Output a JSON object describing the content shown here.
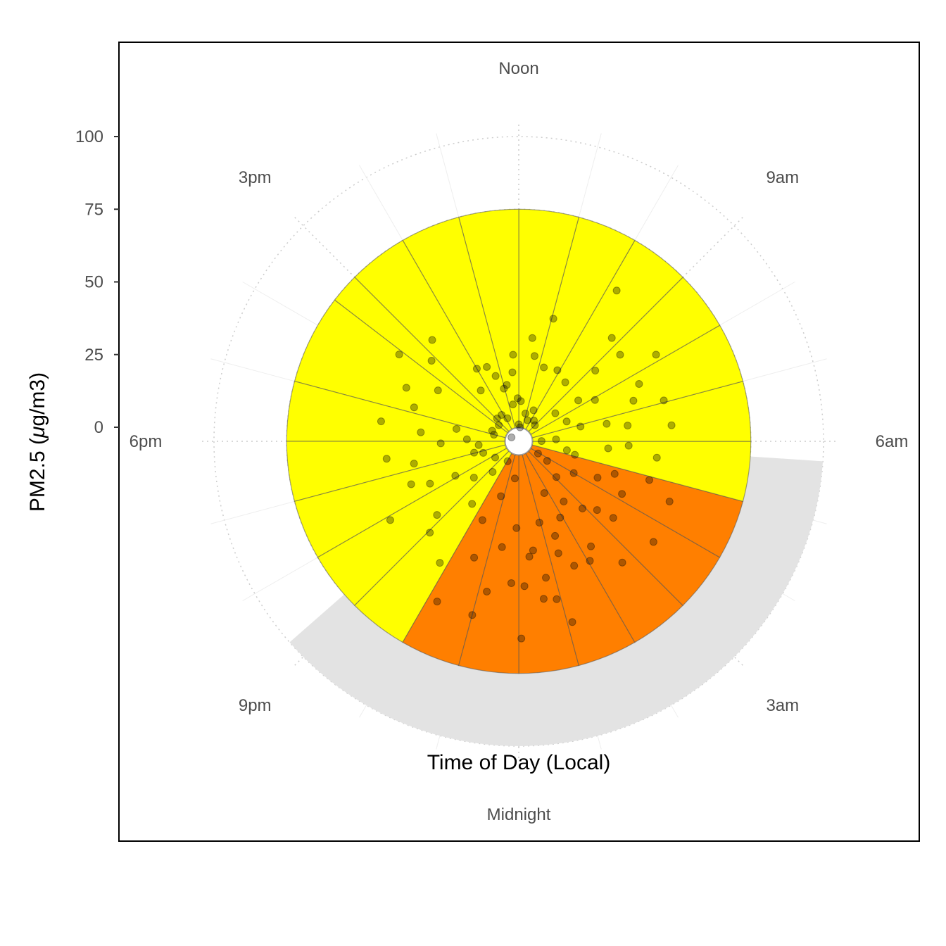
{
  "chart_data": {
    "type": "polar-bar",
    "xlabel": "Time of Day (Local)",
    "ylabel_prefix": "PM2.5 (",
    "ylabel_mu": "μ",
    "ylabel_suffix": "g/m3)",
    "y_ticks": [
      0,
      25,
      50,
      75,
      100
    ],
    "ylim": [
      0,
      100
    ],
    "hour_labels": [
      {
        "hour": 0,
        "label": "Midnight"
      },
      {
        "hour": 3,
        "label": "3am"
      },
      {
        "hour": 6,
        "label": "6am"
      },
      {
        "hour": 9,
        "label": "9am"
      },
      {
        "hour": 12,
        "label": "Noon"
      },
      {
        "hour": 15,
        "label": "3pm"
      },
      {
        "hour": 18,
        "label": "6pm"
      },
      {
        "hour": 21,
        "label": "9pm"
      }
    ],
    "bars": {
      "hours": [
        0,
        1,
        2,
        3,
        4,
        5,
        6,
        7,
        8,
        9,
        10,
        11,
        12,
        13,
        14,
        15,
        15.5,
        17,
        18,
        19,
        20,
        21,
        22,
        23
      ],
      "values": [
        75,
        75,
        75,
        75,
        75,
        75,
        75,
        75,
        75,
        75,
        75,
        75,
        75,
        75,
        75,
        75,
        75,
        75,
        75,
        75,
        75,
        75,
        75,
        75
      ],
      "categories": [
        "orange",
        "orange",
        "orange",
        "orange",
        "orange",
        "yellow",
        "yellow",
        "yellow",
        "yellow",
        "yellow",
        "yellow",
        "yellow",
        "yellow",
        "yellow",
        "yellow",
        "yellow",
        "yellow",
        "yellow",
        "yellow",
        "yellow",
        "yellow",
        "yellow",
        "orange",
        "orange"
      ]
    },
    "night_band": {
      "start_hour": 20.75,
      "end_hour": 5.75,
      "value": 100
    },
    "colors": {
      "orange": "#ff7f00",
      "yellow": "#ffff00",
      "night": "#e3e3e3",
      "point": "#000000"
    },
    "points": [
      [
        0.05,
        68
      ],
      [
        0.15,
        50
      ],
      [
        0.35,
        40
      ],
      [
        0.5,
        38
      ],
      [
        0.6,
        55
      ],
      [
        0.75,
        48
      ],
      [
        0.9,
        56
      ],
      [
        0.95,
        29
      ],
      [
        1.1,
        65
      ],
      [
        1.3,
        41
      ],
      [
        1.4,
        35
      ],
      [
        1.6,
        47
      ],
      [
        1.75,
        20
      ],
      [
        1.9,
        30
      ],
      [
        2.05,
        48
      ],
      [
        2.3,
        44
      ],
      [
        2.45,
        26
      ],
      [
        2.7,
        55
      ],
      [
        2.9,
        32
      ],
      [
        3.1,
        18
      ],
      [
        3.25,
        36
      ],
      [
        3.4,
        42
      ],
      [
        3.55,
        58
      ],
      [
        3.7,
        12
      ],
      [
        3.85,
        8
      ],
      [
        4.0,
        22
      ],
      [
        4.2,
        40
      ],
      [
        4.35,
        30
      ],
      [
        4.55,
        56
      ],
      [
        4.75,
        35
      ],
      [
        4.9,
        47
      ],
      [
        5.1,
        20
      ],
      [
        5.3,
        17
      ],
      [
        5.55,
        48
      ],
      [
        5.7,
        31
      ],
      [
        5.85,
        38
      ],
      [
        6.05,
        8
      ],
      [
        6.2,
        13
      ],
      [
        6.4,
        53
      ],
      [
        6.55,
        38
      ],
      [
        6.75,
        31
      ],
      [
        6.9,
        22
      ],
      [
        7.05,
        52
      ],
      [
        7.3,
        42
      ],
      [
        7.5,
        18
      ],
      [
        7.7,
        46
      ],
      [
        7.9,
        30
      ],
      [
        8.15,
        56
      ],
      [
        8.3,
        25
      ],
      [
        8.5,
        16
      ],
      [
        8.7,
        46
      ],
      [
        8.85,
        36
      ],
      [
        9.0,
        8
      ],
      [
        9.2,
        48
      ],
      [
        9.45,
        26
      ],
      [
        9.6,
        9
      ],
      [
        9.8,
        62
      ],
      [
        10.1,
        28
      ],
      [
        10.3,
        12
      ],
      [
        10.5,
        8
      ],
      [
        10.75,
        27
      ],
      [
        10.95,
        44
      ],
      [
        11.1,
        10
      ],
      [
        11.3,
        30
      ],
      [
        11.5,
        36
      ],
      [
        11.65,
        5
      ],
      [
        11.8,
        14
      ],
      [
        12.0,
        6
      ],
      [
        12.1,
        15
      ],
      [
        12.25,
        30
      ],
      [
        12.35,
        24
      ],
      [
        12.6,
        13
      ],
      [
        12.8,
        20
      ],
      [
        13.05,
        19
      ],
      [
        13.3,
        24
      ],
      [
        13.55,
        28
      ],
      [
        13.75,
        9
      ],
      [
        14.0,
        29
      ],
      [
        14.2,
        11
      ],
      [
        14.45,
        22
      ],
      [
        14.7,
        46
      ],
      [
        14.9,
        11
      ],
      [
        15.15,
        41
      ],
      [
        15.4,
        9
      ],
      [
        15.6,
        51
      ],
      [
        15.85,
        33
      ],
      [
        16.1,
        3
      ],
      [
        16.3,
        43
      ],
      [
        16.55,
        10
      ],
      [
        16.8,
        38
      ],
      [
        17.0,
        9
      ],
      [
        17.25,
        22
      ],
      [
        17.45,
        48
      ],
      [
        17.65,
        34
      ],
      [
        17.85,
        18
      ],
      [
        18.1,
        27
      ],
      [
        18.35,
        14
      ],
      [
        18.5,
        46
      ],
      [
        18.8,
        37
      ],
      [
        18.95,
        16
      ],
      [
        19.2,
        13
      ],
      [
        19.45,
        40
      ],
      [
        19.7,
        34
      ],
      [
        19.9,
        25
      ],
      [
        20.1,
        52
      ],
      [
        20.3,
        10
      ],
      [
        20.6,
        20
      ],
      [
        20.8,
        38
      ],
      [
        21.05,
        44
      ],
      [
        21.3,
        14
      ],
      [
        21.55,
        27
      ],
      [
        21.8,
        50
      ],
      [
        22.05,
        8
      ],
      [
        22.2,
        62
      ],
      [
        22.35,
        30
      ],
      [
        22.6,
        43
      ],
      [
        22.8,
        20
      ],
      [
        23.0,
        62
      ],
      [
        23.2,
        53
      ],
      [
        23.4,
        37
      ],
      [
        23.6,
        13
      ],
      [
        23.8,
        49
      ],
      [
        23.9,
        30
      ]
    ]
  }
}
